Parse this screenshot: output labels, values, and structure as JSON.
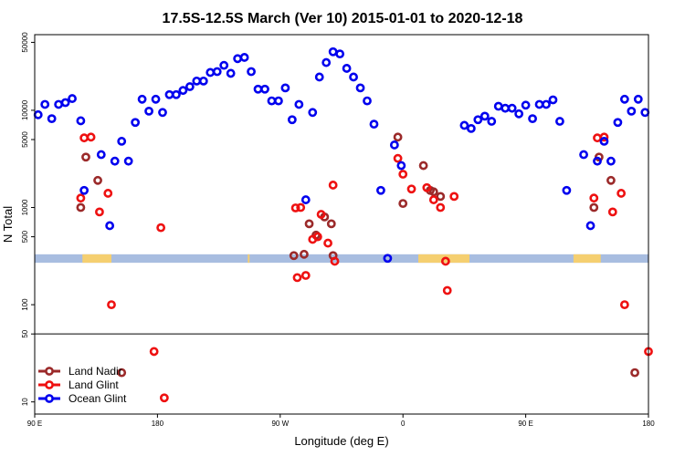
{
  "chart_data": {
    "type": "scatter",
    "title": "17.5S-12.5S March (Ver 10)   2015-01-01 to 2020-12-18",
    "xlabel": "Longitude (deg E)",
    "ylabel": "N Total",
    "y_scale": "log",
    "xlim": [
      90,
      450
    ],
    "ylim": [
      7.5,
      60000
    ],
    "x_ticks": [
      {
        "value": 90,
        "label": "90 E"
      },
      {
        "value": 162,
        "label": "180"
      },
      {
        "value": 234,
        "label": "90 W"
      },
      {
        "value": 306,
        "label": "0"
      },
      {
        "value": 378,
        "label": "90 E"
      },
      {
        "value": 450,
        "label": "180"
      }
    ],
    "y_ticks": [
      {
        "value": 10,
        "label": "10"
      },
      {
        "value": 50,
        "label": "50"
      },
      {
        "value": 100,
        "label": "100"
      },
      {
        "value": 500,
        "label": "500"
      },
      {
        "value": 1000,
        "label": "1000"
      },
      {
        "value": 5000,
        "label": "5000"
      },
      {
        "value": 10000,
        "label": "10000"
      },
      {
        "value": 50000,
        "label": "50000"
      }
    ],
    "divider_y": 50,
    "band": {
      "y_range": [
        270,
        330
      ],
      "color": "#a8bde0",
      "land_color": "#f5cf70",
      "land_segments": [
        [
          118,
          135
        ],
        [
          215,
          216
        ],
        [
          315,
          345
        ],
        [
          406,
          422
        ]
      ]
    },
    "legend": {
      "position": "bottom-left"
    },
    "series": [
      {
        "name": "Land Nadir",
        "color": "#9b2a2a",
        "points": [
          [
            117,
            1000
          ],
          [
            120,
            3300
          ],
          [
            127,
            1900
          ],
          [
            141,
            20
          ],
          [
            242,
            320
          ],
          [
            248,
            330
          ],
          [
            251,
            680
          ],
          [
            255,
            520
          ],
          [
            260,
            800
          ],
          [
            264,
            680
          ],
          [
            265,
            320
          ],
          [
            303,
            5300
          ],
          [
            306,
            1100
          ],
          [
            318,
            2700
          ],
          [
            322,
            1500
          ],
          [
            324,
            1450
          ],
          [
            328,
            1300
          ],
          [
            418,
            1000
          ],
          [
            421,
            3300
          ],
          [
            428,
            1900
          ],
          [
            442,
            20
          ]
        ]
      },
      {
        "name": "Land Glint",
        "color": "#ee1111",
        "points": [
          [
            117,
            1250
          ],
          [
            119,
            5200
          ],
          [
            123,
            5300
          ],
          [
            128,
            900
          ],
          [
            133,
            1400
          ],
          [
            135,
            100
          ],
          [
            160,
            33
          ],
          [
            164,
            620
          ],
          [
            166,
            11
          ],
          [
            243,
            990
          ],
          [
            244,
            190
          ],
          [
            246,
            1000
          ],
          [
            249,
            200
          ],
          [
            253,
            470
          ],
          [
            256,
            500
          ],
          [
            258,
            850
          ],
          [
            262,
            430
          ],
          [
            265,
            1700
          ],
          [
            266,
            280
          ],
          [
            303,
            3200
          ],
          [
            306,
            2200
          ],
          [
            311,
            1550
          ],
          [
            320,
            1600
          ],
          [
            324,
            1200
          ],
          [
            328,
            1000
          ],
          [
            331,
            280
          ],
          [
            332,
            140
          ],
          [
            336,
            1300
          ],
          [
            418,
            1250
          ],
          [
            420,
            5200
          ],
          [
            424,
            5300
          ],
          [
            429,
            900
          ],
          [
            434,
            1400
          ],
          [
            436,
            100
          ],
          [
            450,
            33
          ]
        ]
      },
      {
        "name": "Ocean Glint",
        "color": "#0000ee",
        "points": [
          [
            92,
            9000
          ],
          [
            96,
            11500
          ],
          [
            100,
            8200
          ],
          [
            104,
            11500
          ],
          [
            108,
            12000
          ],
          [
            112,
            13200
          ],
          [
            117,
            7800
          ],
          [
            119,
            1500
          ],
          [
            129,
            3500
          ],
          [
            134,
            650
          ],
          [
            137,
            3000
          ],
          [
            141,
            4800
          ],
          [
            145,
            3000
          ],
          [
            149,
            7500
          ],
          [
            153,
            13000
          ],
          [
            157,
            9800
          ],
          [
            161,
            13000
          ],
          [
            165,
            9500
          ],
          [
            169,
            14500
          ],
          [
            173,
            14500
          ],
          [
            177,
            16000
          ],
          [
            181,
            17500
          ],
          [
            185,
            20000
          ],
          [
            189,
            20000
          ],
          [
            193,
            24500
          ],
          [
            197,
            25000
          ],
          [
            201,
            29000
          ],
          [
            205,
            24000
          ],
          [
            209,
            34000
          ],
          [
            213,
            35000
          ],
          [
            217,
            25000
          ],
          [
            221,
            16500
          ],
          [
            225,
            16500
          ],
          [
            229,
            12500
          ],
          [
            233,
            12500
          ],
          [
            237,
            17000
          ],
          [
            241,
            8000
          ],
          [
            245,
            11500
          ],
          [
            249,
            1200
          ],
          [
            253,
            9500
          ],
          [
            257,
            22000
          ],
          [
            261,
            31000
          ],
          [
            265,
            40000
          ],
          [
            269,
            38000
          ],
          [
            273,
            27000
          ],
          [
            277,
            22000
          ],
          [
            281,
            17000
          ],
          [
            285,
            12500
          ],
          [
            289,
            7200
          ],
          [
            293,
            1500
          ],
          [
            297,
            300
          ],
          [
            301,
            4400
          ],
          [
            305,
            2700
          ],
          [
            342,
            7000
          ],
          [
            346,
            6500
          ],
          [
            350,
            8000
          ],
          [
            354,
            8700
          ],
          [
            358,
            7700
          ],
          [
            362,
            11000
          ],
          [
            366,
            10500
          ],
          [
            370,
            10500
          ],
          [
            374,
            9200
          ],
          [
            378,
            11300
          ],
          [
            382,
            8200
          ],
          [
            386,
            11500
          ],
          [
            390,
            11500
          ],
          [
            394,
            12800
          ],
          [
            398,
            7700
          ],
          [
            402,
            1500
          ],
          [
            412,
            3500
          ],
          [
            416,
            650
          ],
          [
            420,
            3000
          ],
          [
            424,
            4800
          ],
          [
            428,
            3000
          ],
          [
            432,
            7500
          ],
          [
            436,
            13000
          ],
          [
            440,
            9800
          ],
          [
            444,
            13000
          ],
          [
            448,
            9500
          ]
        ]
      }
    ]
  }
}
